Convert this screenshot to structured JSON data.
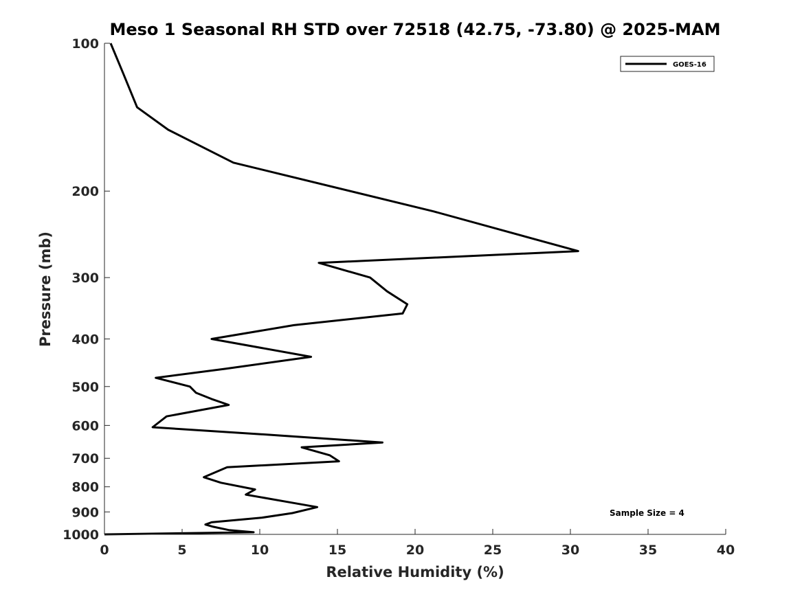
{
  "chart_data": {
    "type": "line",
    "title": "Meso 1 Seasonal RH STD over 72518 (42.75, -73.80) @ 2025-MAM",
    "xlabel": "Relative Humidity (%)",
    "ylabel": "Pressure (mb)",
    "xlim": [
      0,
      40
    ],
    "ylim": [
      100,
      1000
    ],
    "yscale": "log",
    "xticks": [
      0,
      5,
      10,
      15,
      20,
      25,
      30,
      35,
      40
    ],
    "yticks": [
      100,
      200,
      300,
      400,
      500,
      600,
      700,
      800,
      900,
      1000
    ],
    "legend_position": "top-right",
    "annotation": "Sample Size = 4",
    "series": [
      {
        "name": "GOES-16",
        "color": "#000000",
        "x": [
          0.4,
          1.2,
          2.1,
          4.1,
          8.3,
          21.2,
          30.5,
          13.8,
          17.1,
          18.2,
          19.5,
          19.2,
          12.2,
          6.9,
          13.3,
          7.8,
          3.3,
          5.5,
          5.9,
          6.9,
          8.0,
          4.0,
          3.1,
          10.0,
          17.9,
          12.7,
          14.5,
          15.1,
          7.9,
          6.4,
          7.5,
          9.7,
          9.1,
          11.9,
          13.7,
          12.1,
          10.1,
          6.9,
          6.5,
          7.0,
          8.0,
          9.6,
          0.0
        ]
      }
    ],
    "pressure_levels": [
      100,
      115,
      135,
      150,
      175,
      220,
      265,
      280,
      300,
      320,
      340,
      355,
      375,
      400,
      435,
      460,
      480,
      500,
      515,
      530,
      545,
      575,
      605,
      625,
      650,
      665,
      690,
      710,
      730,
      765,
      785,
      810,
      830,
      860,
      880,
      905,
      925,
      945,
      955,
      965,
      980,
      990,
      1000
    ]
  }
}
